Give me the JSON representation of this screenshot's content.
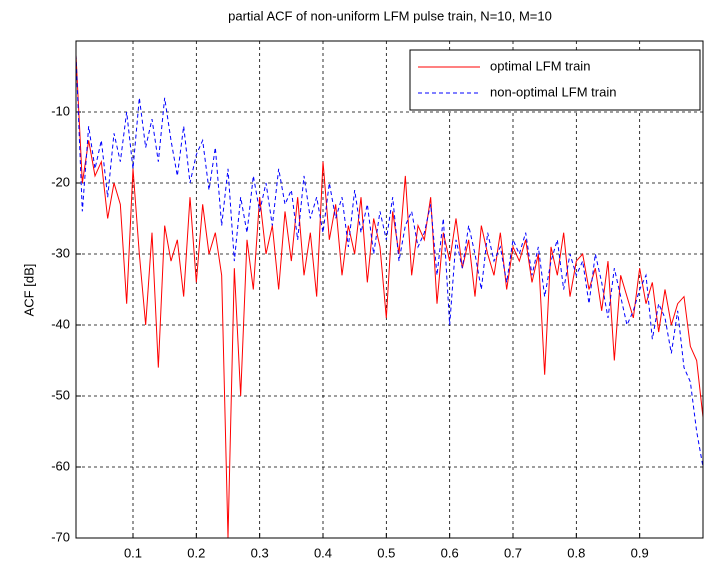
{
  "chart_data": {
    "type": "line",
    "title": "partial ACF of non-uniform LFM pulse train, N=10, M=10",
    "y_label": "ACF [dB]",
    "x": [
      0.01,
      0.02,
      0.03,
      0.04,
      0.05,
      0.06,
      0.07,
      0.08,
      0.09,
      0.1,
      0.11,
      0.12,
      0.13,
      0.14,
      0.15,
      0.16,
      0.17,
      0.18,
      0.19,
      0.2,
      0.21,
      0.22,
      0.23,
      0.24,
      0.25,
      0.26,
      0.27,
      0.28,
      0.29,
      0.3,
      0.31,
      0.32,
      0.33,
      0.34,
      0.35,
      0.36,
      0.37,
      0.38,
      0.39,
      0.4,
      0.41,
      0.42,
      0.43,
      0.44,
      0.45,
      0.46,
      0.47,
      0.48,
      0.49,
      0.5,
      0.51,
      0.52,
      0.53,
      0.54,
      0.55,
      0.56,
      0.57,
      0.58,
      0.59,
      0.6,
      0.61,
      0.62,
      0.63,
      0.64,
      0.65,
      0.66,
      0.67,
      0.68,
      0.69,
      0.7,
      0.71,
      0.72,
      0.73,
      0.74,
      0.75,
      0.76,
      0.77,
      0.78,
      0.79,
      0.8,
      0.81,
      0.82,
      0.83,
      0.84,
      0.85,
      0.86,
      0.87,
      0.88,
      0.89,
      0.9,
      0.91,
      0.92,
      0.93,
      0.94,
      0.95,
      0.96,
      0.97,
      0.98,
      0.99,
      1.0
    ],
    "series": [
      {
        "name": "optimal LFM train",
        "color": "#ff0000",
        "dash": false,
        "values": [
          -2,
          -20,
          -14,
          -19,
          -17,
          -25,
          -20,
          -23,
          -37,
          -18,
          -30,
          -40,
          -27,
          -46,
          -26,
          -31,
          -28,
          -36,
          -22,
          -34,
          -23,
          -30,
          -27,
          -33,
          -70,
          -32,
          -50,
          -28,
          -35,
          -22,
          -30,
          -26,
          -35,
          -24,
          -31,
          -22,
          -33,
          -27,
          -36,
          -17,
          -28,
          -23,
          -33,
          -26,
          -30,
          -22,
          -34,
          -25,
          -29,
          -39,
          -24,
          -30,
          -19,
          -33,
          -26,
          -28,
          -22,
          -37,
          -27,
          -31,
          -25,
          -32,
          -28,
          -36,
          -26,
          -30,
          -33,
          -27,
          -35,
          -29,
          -31,
          -28,
          -34,
          -30,
          -47,
          -29,
          -33,
          -27,
          -36,
          -31,
          -30,
          -35,
          -32,
          -38,
          -31,
          -45,
          -33,
          -36,
          -39,
          -32,
          -37,
          -34,
          -41,
          -35,
          -40,
          -37,
          -36,
          -43,
          -45,
          -53
        ]
      },
      {
        "name": "non-optimal LFM train",
        "color": "#0000ff",
        "dash": true,
        "values": [
          -2,
          -24,
          -12,
          -18,
          -14,
          -22,
          -13,
          -17,
          -10,
          -18,
          -8,
          -15,
          -11,
          -17,
          -8,
          -14,
          -19,
          -12,
          -20,
          -16,
          -14,
          -21,
          -15,
          -26,
          -18,
          -31,
          -22,
          -27,
          -19,
          -24,
          -20,
          -26,
          -18,
          -23,
          -21,
          -28,
          -19,
          -25,
          -22,
          -27,
          -20,
          -25,
          -22,
          -29,
          -21,
          -27,
          -23,
          -30,
          -24,
          -28,
          -22,
          -31,
          -26,
          -24,
          -29,
          -27,
          -23,
          -33,
          -25,
          -40,
          -28,
          -32,
          -26,
          -30,
          -35,
          -27,
          -31,
          -29,
          -34,
          -28,
          -30,
          -27,
          -33,
          -29,
          -36,
          -31,
          -28,
          -35,
          -30,
          -33,
          -31,
          -37,
          -30,
          -34,
          -39,
          -32,
          -36,
          -40,
          -38,
          -35,
          -33,
          -42,
          -37,
          -39,
          -44,
          -38,
          -46,
          -48,
          -55,
          -60
        ]
      }
    ],
    "xlim": [
      0.01,
      1.0
    ],
    "ylim": [
      -70,
      0
    ],
    "xticks": [
      0.1,
      0.2,
      0.3,
      0.4,
      0.5,
      0.6,
      0.7,
      0.8,
      0.9
    ],
    "yticks": [
      -70,
      -60,
      -50,
      -40,
      -30,
      -20,
      -10
    ],
    "grid": true,
    "legend": "upper right"
  }
}
